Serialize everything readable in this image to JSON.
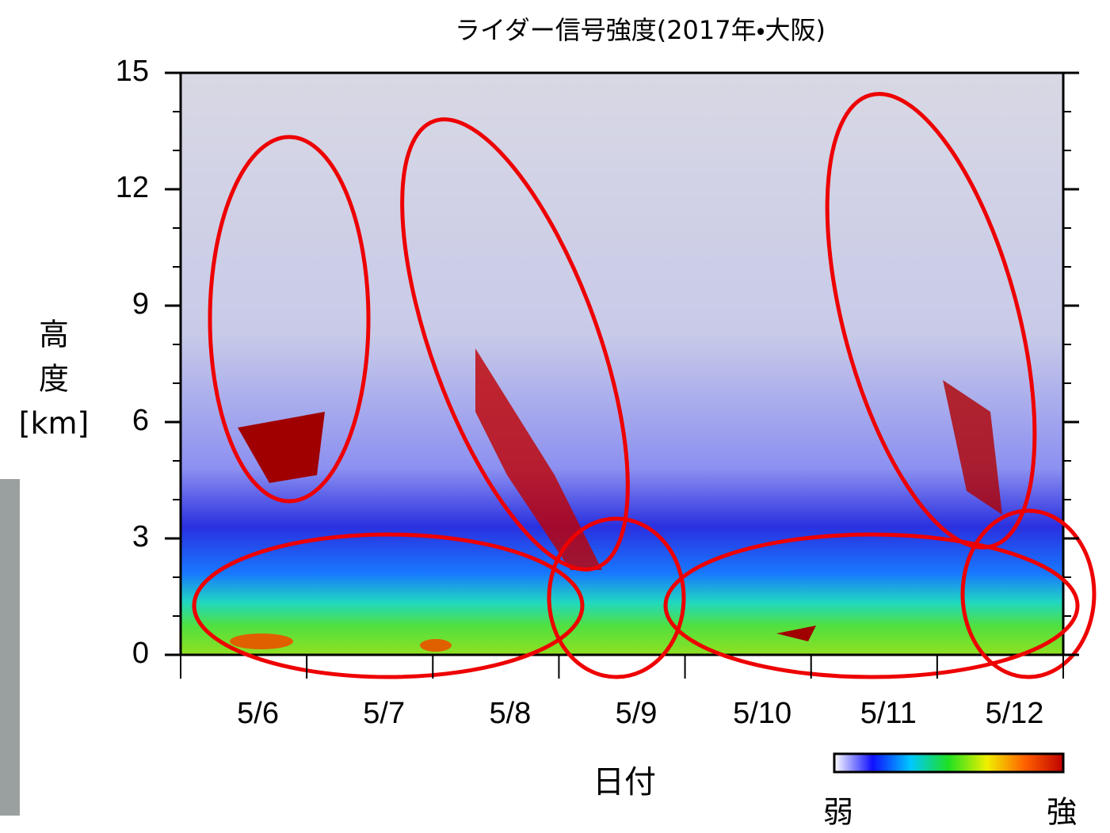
{
  "chart_data": {
    "type": "heatmap",
    "title": "ライダー信号強度(2017年・大阪)",
    "y_label": [
      "高",
      "度",
      "[km]"
    ],
    "x_label": "日付",
    "categories": [
      "5/6",
      "5/7",
      "5/8",
      "5/9",
      "5/10",
      "5/11",
      "5/12"
    ],
    "ylim": [
      0,
      15
    ],
    "yticks": [
      0,
      3,
      6,
      9,
      12,
      15
    ],
    "yticks_minor": [
      1,
      2,
      4,
      5,
      7,
      8,
      10,
      11,
      13,
      14
    ],
    "colorbar": {
      "colors": [
        "#ffffff",
        "#1010ff",
        "#00c8ff",
        "#20e020",
        "#f0f000",
        "#ff6000",
        "#c00000"
      ],
      "labels": [
        "弱",
        "強"
      ]
    }
  }
}
